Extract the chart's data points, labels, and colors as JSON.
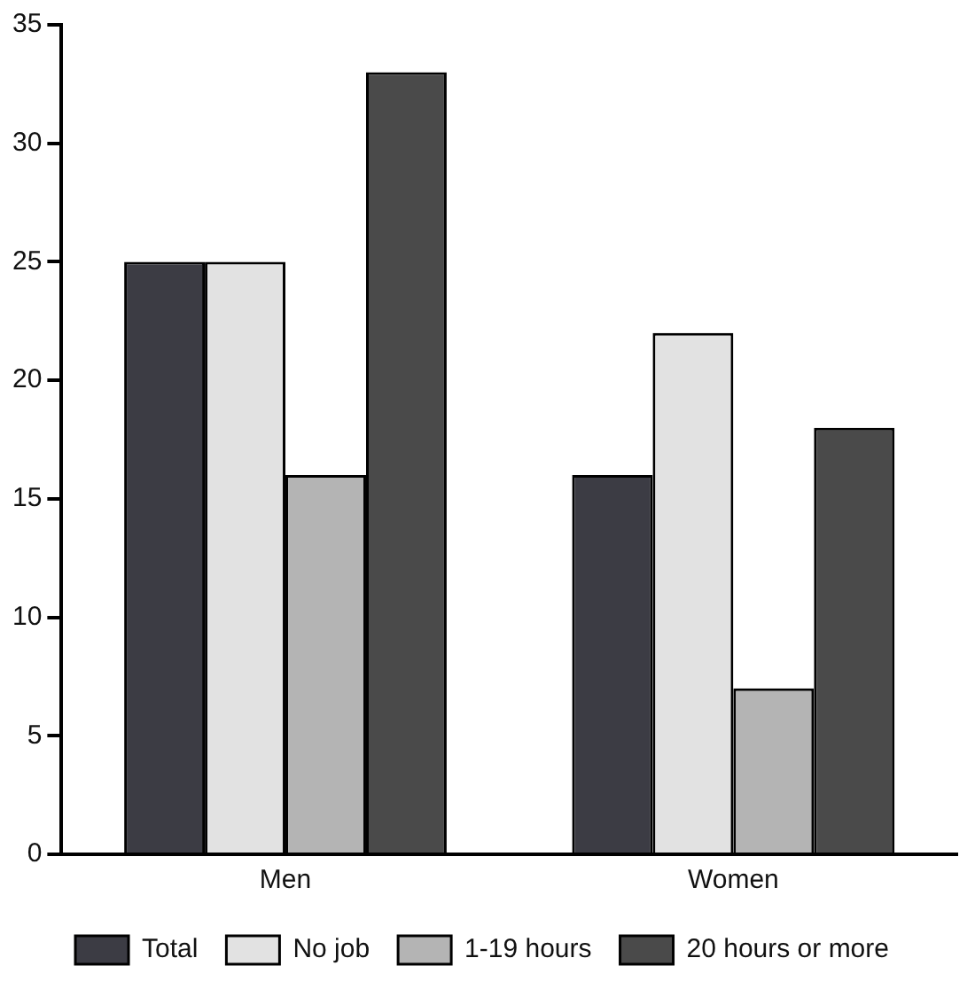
{
  "chart_data": {
    "type": "bar",
    "categories": [
      "Men",
      "Women"
    ],
    "series": [
      {
        "name": "Total",
        "color": "#3c3c44",
        "values": [
          25,
          16
        ]
      },
      {
        "name": "No job",
        "color": "#e2e2e2",
        "values": [
          25,
          22
        ]
      },
      {
        "name": "1-19 hours",
        "color": "#b4b4b4",
        "values": [
          16,
          7
        ]
      },
      {
        "name": "20 hours or more",
        "color": "#4a4a4a",
        "values": [
          33,
          18
        ]
      }
    ],
    "ylim": [
      0,
      35
    ],
    "yticks": [
      0,
      5,
      10,
      15,
      20,
      25,
      30,
      35
    ],
    "grid": false,
    "legend": "bottom"
  }
}
